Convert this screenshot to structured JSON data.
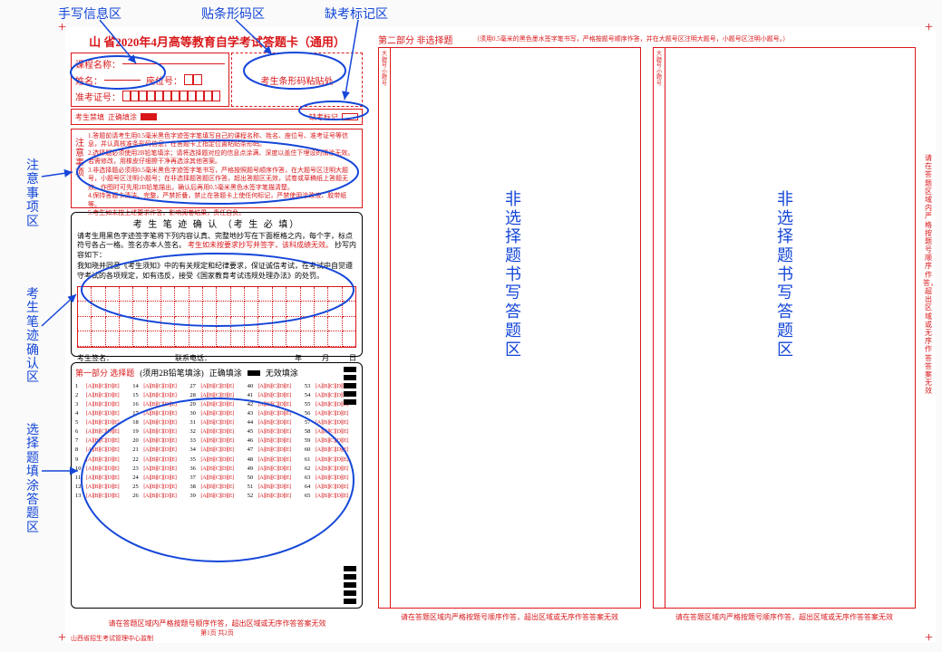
{
  "colors": {
    "red": "#d9171a",
    "blue": "#1446d8",
    "black": "#000000",
    "bg": "#fafafa"
  },
  "card": {
    "title": "山 省2020年4月高等教育自学考试答题卡（通用）",
    "info": {
      "course_label": "课程名称：",
      "name_label": "姓名：",
      "seat_label": "座位号：",
      "ticket_label": "准考证号："
    },
    "barcode_text": "考生条形码粘贴处",
    "absent": {
      "prefix": "考生禁填",
      "correct": "正确填涂",
      "absent_label": "缺考标记"
    },
    "notice_label": "注意事项",
    "notice_lines": [
      "1.答题前请考生用0.5毫米黑色字迹签字笔填写自己的课程名称、姓名、座位号、准考证号等信息，并认真核准条形码信息，在答题卡上指定位置粘贴条形码。",
      "2.选择题必须使用2B铅笔填涂；请将选择题对应的信息点涂满、深度以盖住下埋设的情涂无效。若需修改，用橡皮仔细擦干净再选涂其他答案。",
      "3.非选择题必须用0.5毫米黑色字迹签字笔书写，严格按照题号顺序作答，在大题号区注明大题号，小题号区注明小题号；在非选择题答题区作答，超出答题区无效，试卷或草稿纸上答题无效。作图时可先用2B铅笔描出，确认后再用0.5毫米黑色水签字笔描清楚。",
      "4.保持答题卡清洁、完整，严禁折叠，禁止在答题卡上使任何标记，严禁使用涂改液、胶带纸等。",
      "5.考生如未按上述要求作答，影响阅卷结果，责任自负。"
    ],
    "confirm": {
      "title": "考 生 笔 迹 确 认 （考 生 必 填）",
      "line1": "请考生用黑色字迹签字笔将下列内容认真、完整地抄写在下面框格之内，每个字，标点符号各占一格。签名亦本人签名。",
      "line1_red": "考生如未按要求抄写并签字，该科成绩无效。",
      "line1_tail": "抄写内容如下：",
      "line2": "我知晓并同意《考生须知》中的有关规定和纪律要求，保证诚信考试，在考试中自觉遵守考试的各项规定，如有违反，接受《国家教育考试违规处理办法》的处罚。",
      "sign_label": "考生签名：",
      "phone_label": "联系电话：",
      "date_y": "年",
      "date_m": "月",
      "date_d": "日"
    },
    "mc": {
      "header_part": "第一部分 选择题",
      "header_hint": "(须用2B铅笔填涂)",
      "correct_label": "正确填涂",
      "invalid_label": "无效填涂",
      "options": "[A][B][C][D][E]",
      "rows_per_col": 13,
      "cols": 5,
      "total": 65
    },
    "bottom_warn": "请在答题区域内严格按题号顺序作答，超出区域或无序作答答案无效",
    "page_info": "第1页 共2页",
    "monitor": "山西省招生考试管理中心监制"
  },
  "section2": {
    "title": "第二部分 非选择题",
    "hint": "（须用0.5毫米的黑色墨水签字笔书写，严格按题号顺序作答，并在大题号区注明大题号，小题号区注明小题号。）",
    "side_tag": "大题号小题号",
    "bottom_warn": "请在答题区域内严格按题号顺序作答，超出区域或无序作答答案无效",
    "vert_note": "请在答题区域内严格按题号顺序作答，超出区域或无序作答答案无效"
  },
  "annotations": {
    "top1": "手写信息区",
    "top2": "贴条形码区",
    "top3": "缺考标记区",
    "left1": "注意事项区",
    "left2": "考生笔迹确认区",
    "left3": "选择题填涂答题区",
    "mid1": "非选择题书写答题区",
    "mid2": "非选择题书写答题区"
  }
}
